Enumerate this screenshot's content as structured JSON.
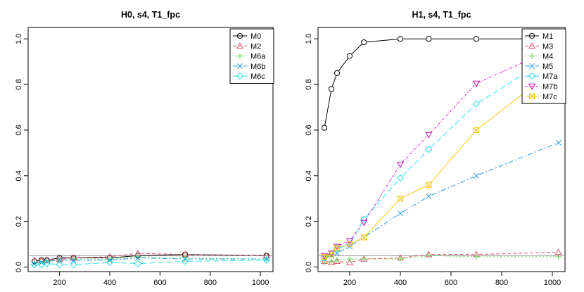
{
  "chart_data": [
    {
      "type": "line",
      "title": "H0, s4, T1_fpc",
      "xlabel": "",
      "ylabel": "",
      "xlim": [
        75,
        1050
      ],
      "ylim": [
        -0.02,
        1.05
      ],
      "x_ticks": [
        200,
        400,
        600,
        800,
        1000
      ],
      "y_ticks": [
        0.0,
        0.2,
        0.4,
        0.6,
        0.8,
        1.0
      ],
      "x_tick_labels": [
        "200",
        "400",
        "600",
        "800",
        "1000"
      ],
      "y_tick_labels": [
        "0.0",
        "0.2",
        "0.4",
        "0.6",
        "0.8",
        "1.0"
      ],
      "reference_line": 0.05,
      "legend_position": "top-right",
      "x": [
        100,
        128,
        150,
        200,
        256,
        400,
        512,
        700,
        1024
      ],
      "series": [
        {
          "name": "M0",
          "color": "#000000",
          "marker": "circle",
          "dash": "",
          "values": [
            0.025,
            0.03,
            0.03,
            0.04,
            0.04,
            0.04,
            0.05,
            0.055,
            0.05
          ]
        },
        {
          "name": "M2",
          "color": "#DF536B",
          "marker": "triangle-up",
          "dash": "5,3",
          "values": [
            0.03,
            0.03,
            0.03,
            0.035,
            0.04,
            0.045,
            0.06,
            0.055,
            0.05
          ]
        },
        {
          "name": "M6a",
          "color": "#61D04F",
          "marker": "plus",
          "dash": "2,3",
          "values": [
            0.02,
            0.025,
            0.025,
            0.03,
            0.035,
            0.035,
            0.045,
            0.04,
            0.035
          ]
        },
        {
          "name": "M6b",
          "color": "#2297E6",
          "marker": "cross",
          "dash": "7,3,2,3",
          "values": [
            0.015,
            0.02,
            0.025,
            0.03,
            0.03,
            0.03,
            0.04,
            0.035,
            0.035
          ]
        },
        {
          "name": "M6c",
          "color": "#28E2E5",
          "marker": "diamond",
          "dash": "8,4",
          "values": [
            0.01,
            0.01,
            0.015,
            0.01,
            0.01,
            0.02,
            0.015,
            0.025,
            0.03
          ]
        }
      ]
    },
    {
      "type": "line",
      "title": "H1, s4, T1_fpc",
      "xlabel": "",
      "ylabel": "",
      "xlim": [
        75,
        1050
      ],
      "ylim": [
        -0.02,
        1.05
      ],
      "x_ticks": [
        200,
        400,
        600,
        800,
        1000
      ],
      "y_ticks": [
        0.0,
        0.2,
        0.4,
        0.6,
        0.8,
        1.0
      ],
      "x_tick_labels": [
        "200",
        "400",
        "600",
        "800",
        "1000"
      ],
      "y_tick_labels": [
        "0.0",
        "0.2",
        "0.4",
        "0.6",
        "0.8",
        "1.0"
      ],
      "reference_line": 0.05,
      "legend_position": "top-right",
      "x": [
        100,
        128,
        150,
        200,
        256,
        400,
        512,
        700,
        1024
      ],
      "series": [
        {
          "name": "M1",
          "color": "#000000",
          "marker": "circle",
          "dash": "",
          "values": [
            0.61,
            0.78,
            0.85,
            0.925,
            0.985,
            1.0,
            1.0,
            1.0,
            1.0
          ]
        },
        {
          "name": "M3",
          "color": "#DF536B",
          "marker": "triangle-up",
          "dash": "5,3",
          "values": [
            0.025,
            0.02,
            0.025,
            0.02,
            0.035,
            0.04,
            0.055,
            0.055,
            0.065
          ]
        },
        {
          "name": "M4",
          "color": "#61D04F",
          "marker": "plus",
          "dash": "2,3",
          "values": [
            0.02,
            0.025,
            0.03,
            0.035,
            0.035,
            0.035,
            0.05,
            0.045,
            0.045
          ]
        },
        {
          "name": "M5",
          "color": "#2297E6",
          "marker": "cross",
          "dash": "7,3,2,3",
          "values": [
            0.04,
            0.05,
            0.06,
            0.09,
            0.13,
            0.235,
            0.31,
            0.4,
            0.545
          ]
        },
        {
          "name": "M7a",
          "color": "#28E2E5",
          "marker": "diamond",
          "dash": "8,4",
          "values": [
            0.04,
            0.06,
            0.08,
            0.1,
            0.21,
            0.39,
            0.515,
            0.715,
            0.94
          ]
        },
        {
          "name": "M7b",
          "color": "#CD0BBC",
          "marker": "triangle-down",
          "dash": "3,2,1,2",
          "values": [
            0.05,
            0.06,
            0.09,
            0.115,
            0.195,
            0.45,
            0.58,
            0.805,
            0.965
          ]
        },
        {
          "name": "M7c",
          "color": "#F5C710",
          "marker": "square-x",
          "dash": "",
          "values": [
            0.045,
            0.055,
            0.085,
            0.1,
            0.13,
            0.3,
            0.36,
            0.6,
            0.88
          ]
        }
      ]
    }
  ]
}
